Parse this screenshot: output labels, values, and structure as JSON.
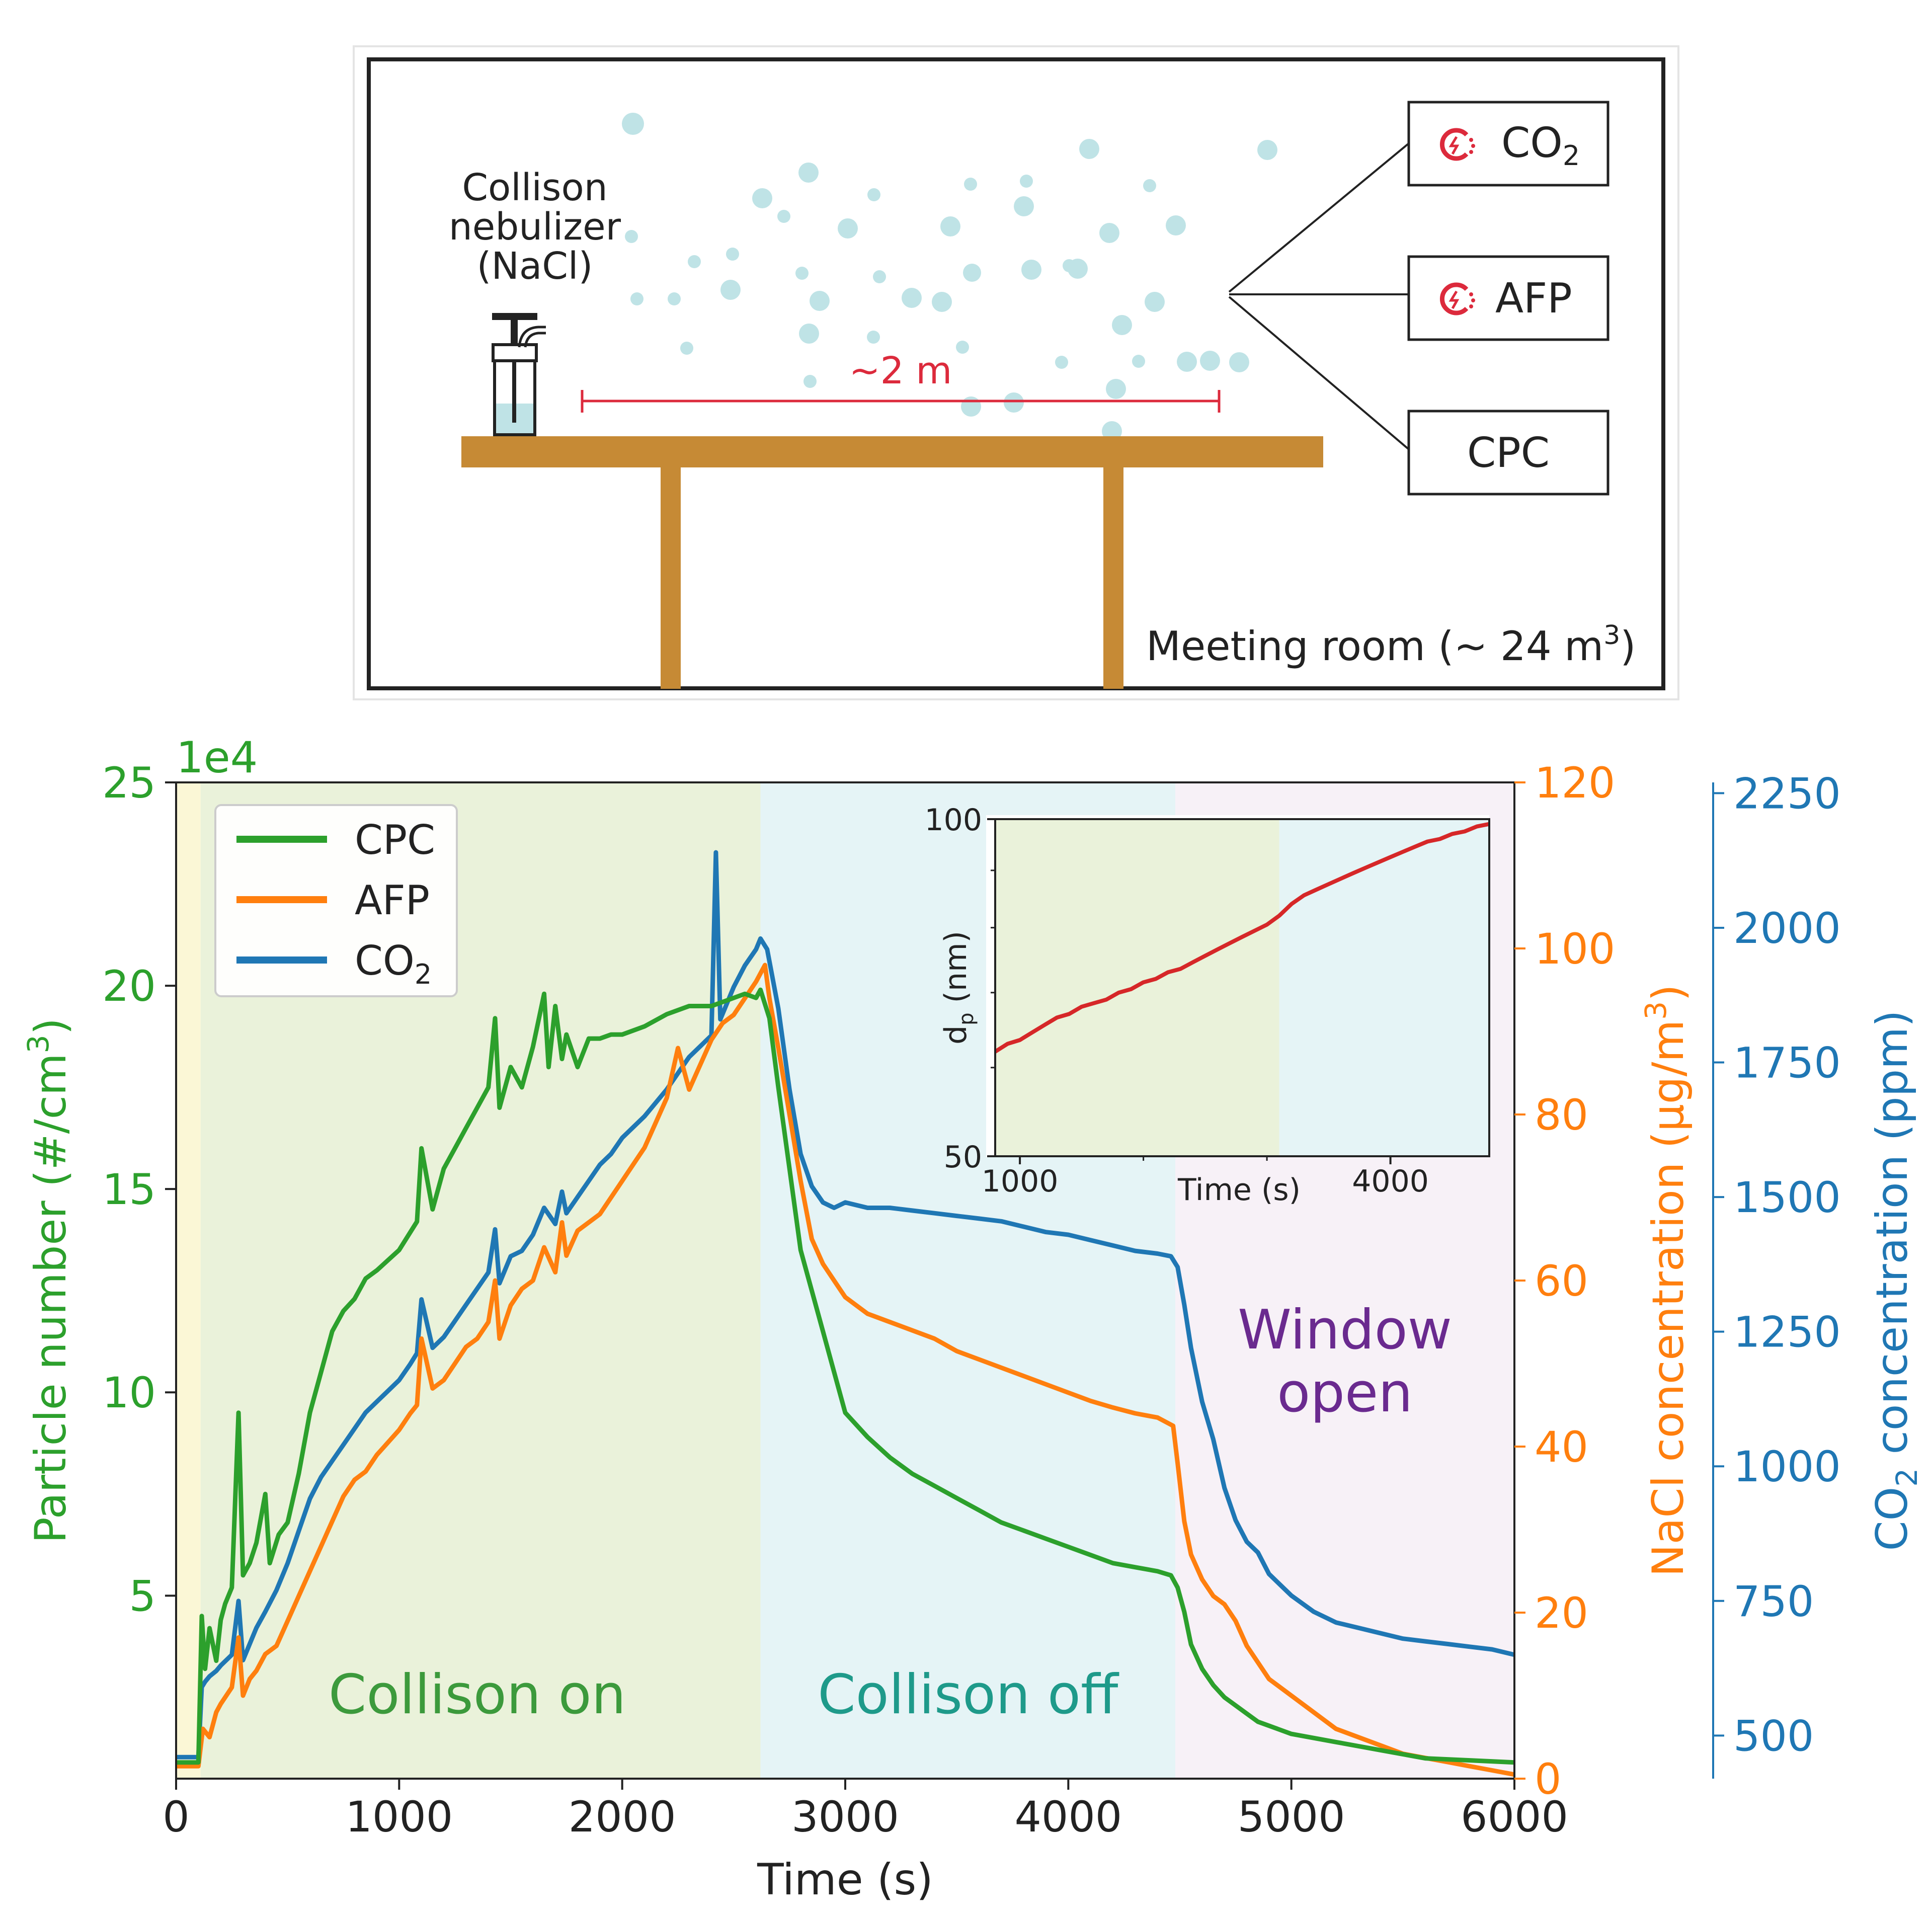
{
  "diagram": {
    "nebulizer_label": [
      "Collison",
      "nebulizer",
      "(NaCl)"
    ],
    "distance_label": "~2 m",
    "room_label": "Meeting room (~ 24 m",
    "room_label_sup": "3",
    "room_label_end": ")",
    "instruments": [
      {
        "label": "CO",
        "sub": "2",
        "icon": "sensor-icon"
      },
      {
        "label": "AFP",
        "sub": "",
        "icon": "sensor-icon"
      },
      {
        "label": "CPC",
        "sub": "",
        "icon": ""
      }
    ],
    "colors": {
      "table": "#c68a35",
      "particle": "#bfe3e6",
      "distance": "#dc2a3c",
      "frame": "#222222"
    }
  },
  "chart_data": [
    {
      "type": "line",
      "xlabel": "Time (s)",
      "xlim": [
        0,
        6000
      ],
      "xticks": [
        0,
        1000,
        2000,
        3000,
        4000,
        5000,
        6000
      ],
      "left_axis": {
        "label": "Particle number (#/cm",
        "label_sup": "3",
        "label_end": ")",
        "multiplier": "1e4",
        "ylim": [
          0.5,
          25
        ],
        "ticks": [
          5,
          10,
          15,
          20,
          25
        ],
        "color": "#2ca02c"
      },
      "right_axis": {
        "label": "NaCl concentration (µg/m",
        "label_sup": "3",
        "label_end": ")",
        "ylim": [
          0,
          120
        ],
        "ticks": [
          0,
          20,
          40,
          60,
          80,
          100,
          120
        ],
        "color": "#ff7f0e"
      },
      "right_axis_2": {
        "label": "CO",
        "label_sub": "2",
        "label_end": " concentration (ppm)",
        "ylim": [
          420,
          2270
        ],
        "ticks": [
          500,
          750,
          1000,
          1250,
          1500,
          1750,
          2000,
          2250
        ],
        "color": "#1f77b4"
      },
      "phases": [
        {
          "label": "",
          "start": 0,
          "end": 110,
          "color": "#fbf7d6"
        },
        {
          "label": "Collison on",
          "start": 110,
          "end": 2620,
          "color": "#eaf2da",
          "text_color": "#3c9a3c"
        },
        {
          "label": "Collison off",
          "start": 2620,
          "end": 4480,
          "color": "#e5f4f6",
          "text_color": "#1e9a8a"
        },
        {
          "label": "Window open",
          "start": 4480,
          "end": 6000,
          "color": "#f7f1f7",
          "text_color": "#6a2a8f",
          "lines": [
            "Window",
            "open"
          ]
        }
      ],
      "legend": {
        "placement": "top-left",
        "entries": [
          {
            "name": "CPC",
            "sub": "",
            "color": "#2ca02c"
          },
          {
            "name": "AFP",
            "sub": "",
            "color": "#ff7f0e"
          },
          {
            "name": "CO",
            "sub": "2",
            "color": "#1f77b4"
          }
        ]
      },
      "series": [
        {
          "name": "CPC",
          "axis": "left",
          "color": "#2ca02c",
          "x": [
            0,
            100,
            115,
            130,
            150,
            180,
            200,
            220,
            250,
            280,
            300,
            330,
            360,
            400,
            420,
            460,
            500,
            550,
            600,
            650,
            700,
            750,
            800,
            850,
            900,
            1000,
            1080,
            1100,
            1150,
            1200,
            1250,
            1300,
            1350,
            1400,
            1430,
            1450,
            1500,
            1550,
            1600,
            1650,
            1670,
            1700,
            1730,
            1750,
            1800,
            1850,
            1900,
            1950,
            2000,
            2100,
            2200,
            2300,
            2400,
            2500,
            2550,
            2600,
            2620,
            2660,
            2700,
            2750,
            2800,
            2850,
            2900,
            2950,
            3000,
            3100,
            3200,
            3300,
            3400,
            3500,
            3600,
            3700,
            3800,
            3900,
            4000,
            4100,
            4200,
            4300,
            4400,
            4460,
            4490,
            4520,
            4550,
            4600,
            4650,
            4700,
            4750,
            4800,
            4850,
            4900,
            5000,
            5200,
            5400,
            5600,
            5800,
            6000
          ],
          "y": [
            0.9,
            0.9,
            4.5,
            3.2,
            4.2,
            3.4,
            4.4,
            4.8,
            5.2,
            9.5,
            5.5,
            5.8,
            6.3,
            7.5,
            5.8,
            6.5,
            6.8,
            8.0,
            9.5,
            10.5,
            11.5,
            12.0,
            12.3,
            12.8,
            13.0,
            13.5,
            14.2,
            16.0,
            14.5,
            15.5,
            16.0,
            16.5,
            17.0,
            17.5,
            19.2,
            17.0,
            18.0,
            17.5,
            18.5,
            19.8,
            18.0,
            19.5,
            18.2,
            18.8,
            18.0,
            18.7,
            18.7,
            18.8,
            18.8,
            19.0,
            19.3,
            19.5,
            19.5,
            19.7,
            19.8,
            19.7,
            19.9,
            19.2,
            17.5,
            15.5,
            13.5,
            12.5,
            11.5,
            10.5,
            9.5,
            8.9,
            8.4,
            8.0,
            7.7,
            7.4,
            7.1,
            6.8,
            6.6,
            6.4,
            6.2,
            6.0,
            5.8,
            5.7,
            5.6,
            5.5,
            5.2,
            4.6,
            3.8,
            3.2,
            2.8,
            2.5,
            2.3,
            2.1,
            1.9,
            1.8,
            1.6,
            1.4,
            1.2,
            1.0,
            0.95,
            0.9
          ]
        },
        {
          "name": "AFP",
          "axis": "right",
          "color": "#ff7f0e",
          "x": [
            0,
            100,
            120,
            150,
            180,
            200,
            250,
            280,
            300,
            330,
            360,
            400,
            450,
            500,
            550,
            600,
            650,
            700,
            750,
            800,
            850,
            900,
            950,
            1000,
            1050,
            1080,
            1100,
            1150,
            1200,
            1250,
            1300,
            1350,
            1400,
            1430,
            1450,
            1500,
            1550,
            1600,
            1650,
            1700,
            1730,
            1750,
            1800,
            1850,
            1900,
            1950,
            2000,
            2050,
            2100,
            2150,
            2200,
            2250,
            2300,
            2400,
            2450,
            2500,
            2550,
            2600,
            2640,
            2660,
            2700,
            2750,
            2800,
            2850,
            2900,
            2950,
            3000,
            3100,
            3200,
            3300,
            3400,
            3500,
            3600,
            3700,
            3800,
            3900,
            4000,
            4100,
            4200,
            4300,
            4400,
            4470,
            4490,
            4520,
            4550,
            4600,
            4650,
            4700,
            4750,
            4800,
            4850,
            4900,
            4950,
            5000,
            5100,
            5200,
            5300,
            5400,
            5500,
            5600,
            5700,
            5800,
            5900,
            6000
          ],
          "y": [
            1.5,
            1.5,
            6,
            5,
            8,
            9,
            11,
            17,
            10,
            12,
            13,
            15,
            16,
            19,
            22,
            25,
            28,
            31,
            34,
            36,
            37,
            39,
            40.5,
            42,
            44,
            45,
            53,
            47,
            48,
            50,
            52,
            53,
            55,
            60,
            53,
            57,
            59,
            60,
            64,
            61,
            67,
            63,
            66,
            67,
            68,
            70,
            72,
            74,
            76,
            79,
            82,
            88,
            83,
            89,
            91,
            92,
            94,
            96,
            98,
            94,
            88,
            80,
            72,
            65,
            62,
            60,
            58,
            56,
            55,
            54,
            53,
            51.5,
            50.5,
            49.5,
            48.5,
            47.5,
            46.5,
            45.5,
            44.7,
            44,
            43.5,
            42.5,
            38,
            31,
            27,
            24,
            22,
            21,
            19,
            16,
            14,
            12,
            11,
            10,
            8,
            6,
            5,
            4,
            3,
            2.5,
            2,
            1.5,
            1,
            0.5
          ]
        },
        {
          "name": "CO2",
          "axis": "right2",
          "color": "#1f77b4",
          "x": [
            0,
            100,
            115,
            130,
            150,
            180,
            200,
            250,
            280,
            300,
            330,
            360,
            400,
            450,
            500,
            550,
            600,
            650,
            700,
            750,
            800,
            850,
            900,
            950,
            1000,
            1050,
            1080,
            1100,
            1150,
            1200,
            1250,
            1300,
            1350,
            1400,
            1430,
            1450,
            1500,
            1550,
            1600,
            1650,
            1700,
            1730,
            1750,
            1800,
            1850,
            1900,
            1950,
            2000,
            2100,
            2200,
            2300,
            2400,
            2420,
            2440,
            2460,
            2500,
            2550,
            2600,
            2620,
            2650,
            2700,
            2750,
            2800,
            2850,
            2900,
            2950,
            3000,
            3100,
            3200,
            3300,
            3400,
            3500,
            3600,
            3700,
            3800,
            3900,
            4000,
            4100,
            4200,
            4300,
            4400,
            4460,
            4490,
            4520,
            4550,
            4600,
            4650,
            4700,
            4750,
            4800,
            4850,
            4900,
            4950,
            5000,
            5100,
            5200,
            5300,
            5400,
            5500,
            5600,
            5700,
            5800,
            5900,
            6000
          ],
          "y": [
            460,
            460,
            590,
            600,
            610,
            620,
            630,
            650,
            750,
            640,
            670,
            700,
            730,
            770,
            820,
            880,
            940,
            980,
            1010,
            1040,
            1070,
            1100,
            1120,
            1140,
            1160,
            1190,
            1210,
            1310,
            1220,
            1240,
            1270,
            1300,
            1330,
            1360,
            1440,
            1340,
            1390,
            1400,
            1430,
            1480,
            1450,
            1510,
            1470,
            1500,
            1530,
            1560,
            1580,
            1610,
            1650,
            1700,
            1760,
            1800,
            2140,
            1830,
            1850,
            1890,
            1930,
            1960,
            1980,
            1960,
            1850,
            1700,
            1580,
            1520,
            1490,
            1480,
            1490,
            1480,
            1480,
            1475,
            1470,
            1465,
            1460,
            1455,
            1445,
            1435,
            1430,
            1420,
            1410,
            1400,
            1395,
            1390,
            1370,
            1300,
            1220,
            1120,
            1050,
            960,
            900,
            860,
            840,
            800,
            780,
            760,
            730,
            710,
            700,
            690,
            680,
            675,
            670,
            665,
            660,
            650
          ]
        }
      ]
    },
    {
      "type": "line",
      "xlabel": "Time (s)",
      "ylabel": "d",
      "ylabel_sub": "p",
      "ylabel_end": " (nm)",
      "xlim": [
        800,
        4800
      ],
      "xticks": [
        1000,
        4000
      ],
      "ylim": [
        50,
        100
      ],
      "yticks": [
        50,
        100
      ],
      "log_y": true,
      "phases": [
        {
          "start": 800,
          "end": 3100,
          "color": "#eaf2da"
        },
        {
          "start": 3100,
          "end": 4800,
          "color": "#e5f4f6"
        }
      ],
      "series": [
        {
          "name": "",
          "color": "#d62728",
          "x": [
            800,
            900,
            1000,
            1100,
            1200,
            1300,
            1400,
            1500,
            1600,
            1700,
            1800,
            1900,
            2000,
            2100,
            2200,
            2300,
            2400,
            2500,
            2600,
            2700,
            2800,
            2900,
            3000,
            3100,
            3200,
            3300,
            3400,
            3500,
            3600,
            3700,
            3800,
            3900,
            4000,
            4100,
            4200,
            4300,
            4400,
            4500,
            4600,
            4700,
            4800
          ],
          "y": [
            62,
            63,
            63.5,
            64.5,
            65.5,
            66.5,
            67,
            68,
            68.5,
            69,
            70,
            70.5,
            71.5,
            72,
            73,
            73.5,
            74.5,
            75.5,
            76.5,
            77.5,
            78.5,
            79.5,
            80.5,
            82,
            84,
            85.5,
            86.5,
            87.5,
            88.5,
            89.5,
            90.5,
            91.5,
            92.5,
            93.5,
            94.5,
            95.5,
            96,
            97,
            97.5,
            98.5,
            99
          ]
        }
      ]
    }
  ]
}
